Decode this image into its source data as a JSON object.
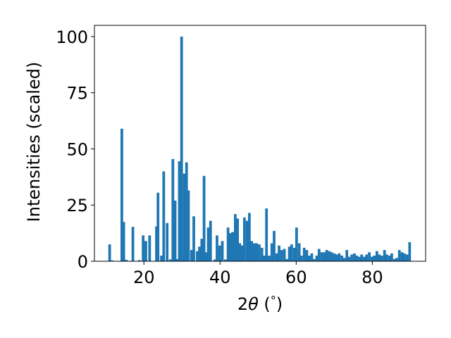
{
  "chart_data": {
    "type": "bar",
    "title": "",
    "xlabel": "2θ (°)",
    "xlabel_parts": {
      "prefix": "2",
      "symbol": "θ",
      "suffix": " (",
      "degree": "°",
      "close": ")"
    },
    "ylabel": "Intensities (scaled)",
    "xlim": [
      7,
      94
    ],
    "ylim": [
      0,
      105
    ],
    "xticks": [
      20,
      40,
      60,
      80
    ],
    "yticks": [
      0,
      25,
      50,
      75,
      100
    ],
    "bar_width_deg": 0.7,
    "bar_color": "#1f77b4",
    "grid": false,
    "legend": "none",
    "series": [
      {
        "x": [
          11.0,
          11.6,
          14.2,
          14.7,
          15.4,
          17.1,
          18.8,
          19.8,
          20.5,
          21.5,
          23.3,
          23.7,
          24.6,
          25.2,
          26.1,
          26.9,
          27.6,
          28.2,
          28.7,
          29.3,
          29.9,
          30.6,
          31.2,
          31.7,
          32.5,
          33.1,
          34.0,
          34.6,
          35.2,
          35.8,
          36.3,
          36.9,
          37.5,
          38.6,
          39.2,
          39.9,
          40.6,
          41.4,
          42.1,
          42.7,
          43.3,
          44.0,
          44.6,
          45.2,
          45.8,
          46.4,
          47.1,
          47.7,
          48.3,
          49.0,
          49.6,
          50.3,
          51.0,
          51.6,
          52.2,
          52.9,
          53.6,
          54.2,
          54.9,
          55.5,
          56.2,
          56.9,
          57.5,
          58.2,
          58.8,
          59.5,
          60.1,
          60.8,
          61.4,
          62.1,
          62.8,
          63.4,
          64.1,
          64.7,
          65.4,
          66.0,
          66.7,
          67.4,
          68.0,
          68.7,
          69.3,
          70.0,
          70.6,
          71.3,
          72.0,
          72.6,
          73.3,
          73.9,
          74.6,
          75.3,
          75.9,
          76.6,
          77.2,
          77.9,
          78.5,
          79.2,
          79.9,
          80.5,
          81.2,
          81.8,
          82.5,
          83.2,
          83.8,
          84.5,
          85.1,
          85.8,
          86.4,
          87.1,
          87.8,
          88.4,
          89.1,
          89.8
        ],
        "values": [
          7.5,
          0.4,
          59,
          17.5,
          0.6,
          15.3,
          0.5,
          11.5,
          9.0,
          11.5,
          15.5,
          30.5,
          2.5,
          40,
          17,
          0.8,
          45.5,
          27,
          1.0,
          44.5,
          100,
          39,
          44,
          31.5,
          5,
          20,
          4.5,
          6.5,
          10,
          38,
          4,
          15,
          18,
          0.8,
          11.5,
          7,
          9,
          0.8,
          15,
          12.5,
          13,
          21,
          19,
          8,
          7,
          19.5,
          18,
          21.5,
          9,
          8,
          8,
          7.5,
          6,
          2.5,
          23.5,
          2.5,
          8,
          13.5,
          3.5,
          7,
          5,
          5.5,
          1,
          6.5,
          7.5,
          6,
          15,
          8,
          2.5,
          6,
          5,
          2.5,
          3.5,
          1,
          2.5,
          5.5,
          4,
          4,
          5,
          4.5,
          4,
          3.5,
          3,
          3.5,
          2.5,
          1.5,
          5,
          2,
          3,
          3.5,
          2.5,
          2,
          3,
          2,
          3,
          4,
          2,
          2.5,
          4.5,
          3,
          2.5,
          5,
          3,
          2.5,
          3.5,
          1,
          1.5,
          5,
          4,
          3.5,
          3,
          8.5
        ]
      }
    ]
  }
}
